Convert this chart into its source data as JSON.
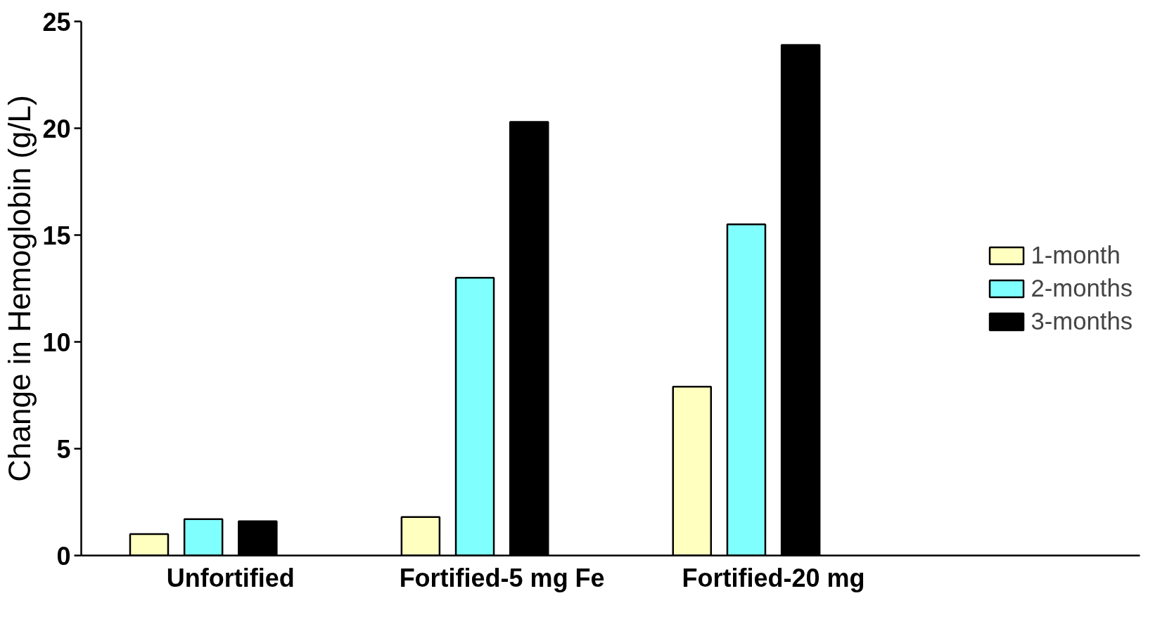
{
  "chart_data": {
    "type": "bar",
    "ylabel": "Change in Hemoglobin (g/L)",
    "categories": [
      "Unfortified",
      "Fortified-5 mg Fe",
      "Fortified-20 mg"
    ],
    "series": [
      {
        "name": "1-month",
        "color": "#ffffc0",
        "values": [
          1.0,
          1.8,
          7.9
        ]
      },
      {
        "name": "2-months",
        "color": "#80ffff",
        "values": [
          1.7,
          13.0,
          15.5
        ]
      },
      {
        "name": "3-months",
        "color": "#000000",
        "values": [
          1.6,
          20.3,
          23.9
        ]
      }
    ],
    "ylim": [
      0,
      25
    ],
    "yticks": [
      0,
      5,
      10,
      15,
      20,
      25
    ],
    "grid": false,
    "legend": "right"
  }
}
